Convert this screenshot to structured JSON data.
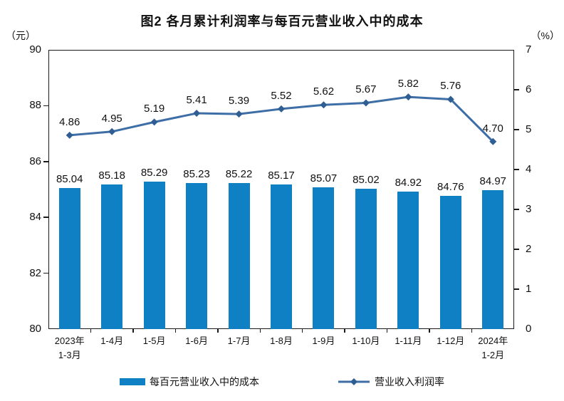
{
  "chart_data": {
    "type": "combo",
    "title": "图2  各月累计利润率与每百元营业收入中的成本",
    "categories": [
      "2023年\n1-3月",
      "1-4月",
      "1-5月",
      "1-6月",
      "1-7月",
      "1-8月",
      "1-9月",
      "1-10月",
      "1-11月",
      "1-12月",
      "2024年\n1-2月"
    ],
    "series": [
      {
        "name": "每百元营业收入中的成本",
        "type": "bar",
        "axis": "left",
        "color": "#1080C4",
        "values": [
          85.04,
          85.18,
          85.29,
          85.23,
          85.22,
          85.17,
          85.07,
          85.02,
          84.92,
          84.76,
          84.97
        ]
      },
      {
        "name": "营业收入利润率",
        "type": "line",
        "axis": "right",
        "color": "#3E6EA6",
        "marker_color": "#2F5E94",
        "values": [
          4.86,
          4.95,
          5.19,
          5.41,
          5.39,
          5.52,
          5.62,
          5.67,
          5.82,
          5.76,
          4.7
        ]
      }
    ],
    "left_axis": {
      "label": "（元）",
      "min": 80,
      "max": 90,
      "step": 2
    },
    "right_axis": {
      "label": "（%）",
      "min": 0,
      "max": 7,
      "step": 1
    },
    "legend_position": "bottom",
    "grid": false,
    "value_labels": true
  }
}
